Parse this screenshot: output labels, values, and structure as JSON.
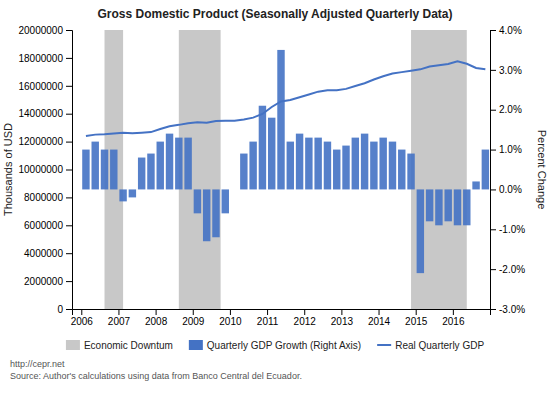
{
  "chart_data": {
    "type": "bar",
    "title": "Gross Domestic Product (Seasonally Adjusted Quarterly Data)",
    "ylabel": "Thousands of USD",
    "y2label": "Percent Change",
    "x": [
      2006.125,
      2006.375,
      2006.625,
      2006.875,
      2007.125,
      2007.375,
      2007.625,
      2007.875,
      2008.125,
      2008.375,
      2008.625,
      2008.875,
      2009.125,
      2009.375,
      2009.625,
      2009.875,
      2010.125,
      2010.375,
      2010.625,
      2010.875,
      2011.125,
      2011.375,
      2011.625,
      2011.875,
      2012.125,
      2012.375,
      2012.625,
      2012.875,
      2013.125,
      2013.375,
      2013.625,
      2013.875,
      2014.125,
      2014.375,
      2014.625,
      2014.875,
      2015.125,
      2015.375,
      2015.625,
      2015.875,
      2016.125,
      2016.375,
      2016.625,
      2016.875
    ],
    "xlim": [
      2005.75,
      2017.0
    ],
    "xticks": [
      2006,
      2007,
      2008,
      2009,
      2010,
      2011,
      2012,
      2013,
      2014,
      2015,
      2016
    ],
    "ylim": [
      0,
      20000000
    ],
    "yticks": [
      0,
      2000000,
      4000000,
      6000000,
      8000000,
      10000000,
      12000000,
      14000000,
      16000000,
      18000000,
      20000000
    ],
    "y2lim": [
      -0.03,
      0.04
    ],
    "y2ticks": [
      {
        "value": -0.03,
        "label": "-3.0%"
      },
      {
        "value": -0.02,
        "label": "-2.0%"
      },
      {
        "value": -0.01,
        "label": "-1.0%"
      },
      {
        "value": 0.0,
        "label": "0.0%"
      },
      {
        "value": 0.01,
        "label": "1.0%"
      },
      {
        "value": 0.02,
        "label": "2.0%"
      },
      {
        "value": 0.03,
        "label": "3.0%"
      },
      {
        "value": 0.04,
        "label": "4.0%"
      }
    ],
    "shades": {
      "name": "Economic Downtum",
      "color": "#C8C8C8",
      "ranges": [
        [
          2006.625,
          2007.125
        ],
        [
          2008.625,
          2009.75
        ],
        [
          2014.875,
          2016.375
        ]
      ]
    },
    "series": [
      {
        "name": "Quarterly GDP Growth (Right Axis)",
        "type": "bar",
        "axis": "y2",
        "color": "#4472C4",
        "values": [
          0.01,
          0.012,
          0.01,
          0.01,
          -0.003,
          -0.002,
          0.008,
          0.009,
          0.012,
          0.014,
          0.013,
          0.013,
          -0.006,
          -0.013,
          -0.012,
          -0.006,
          0.0,
          0.009,
          0.012,
          0.021,
          0.018,
          0.035,
          0.012,
          0.014,
          0.013,
          0.013,
          0.012,
          0.01,
          0.011,
          0.013,
          0.014,
          0.012,
          0.013,
          0.012,
          0.01,
          0.009,
          -0.021,
          -0.008,
          -0.009,
          -0.008,
          -0.009,
          -0.009,
          0.002,
          0.01
        ]
      },
      {
        "name": "Real Quarterly GDP",
        "type": "line",
        "color": "#4472C4",
        "values": [
          12400000,
          12500000,
          12520000,
          12580000,
          12640000,
          12590000,
          12640000,
          12680000,
          12900000,
          13100000,
          13200000,
          13320000,
          13380000,
          13360000,
          13480000,
          13500000,
          13490000,
          13580000,
          13720000,
          13980000,
          14480000,
          14880000,
          14980000,
          15180000,
          15380000,
          15580000,
          15680000,
          15680000,
          15780000,
          15980000,
          16180000,
          16450000,
          16680000,
          16880000,
          16980000,
          17080000,
          17180000,
          17380000,
          17480000,
          17560000,
          17750000,
          17580000,
          17280000,
          17180000
        ]
      }
    ],
    "legend": "bottom",
    "annotations": [
      "http://cepr.net",
      "Source: Author's calculations using data from Banco Central del Ecuador."
    ]
  }
}
